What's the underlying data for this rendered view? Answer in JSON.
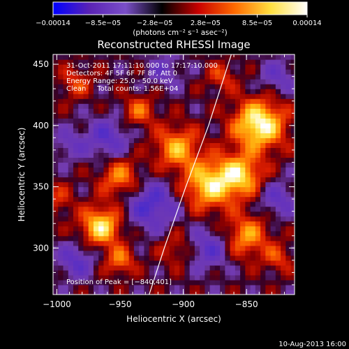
{
  "chart_data": {
    "type": "heatmap",
    "title": "Reconstructed RHESSI Image",
    "xlabel": "Heliocentric X (arcsec)",
    "ylabel": "Heliocentric Y (arcsec)",
    "xlim": [
      -1003,
      -812
    ],
    "ylim": [
      262,
      458
    ],
    "x_ticks": [
      -1000,
      -950,
      -900,
      -850
    ],
    "y_ticks": [
      300,
      350,
      400,
      450
    ],
    "x_tick_labels": [
      "−1000",
      "−950",
      "−900",
      "−850"
    ],
    "y_tick_labels": [
      "300",
      "350",
      "400",
      "450"
    ],
    "colorbar": {
      "ticks": [
        -0.00014,
        -8.5e-05,
        -2.8e-05,
        2.8e-05,
        8.5e-05,
        0.00014
      ],
      "tick_labels": [
        "−0.00014",
        "−8.5e−05",
        "−2.8e−05",
        "2.8e−05",
        "8.5e−05",
        "0.00014"
      ],
      "range": [
        -0.00014,
        0.00014
      ],
      "units": "(photons cm⁻² s⁻¹ asec⁻²)",
      "colors": [
        "#0000ff",
        "#5a23b4",
        "#7a4fc8",
        "#000000",
        "#c80000",
        "#ff6a00",
        "#ffe040",
        "#ffffff"
      ]
    },
    "annotations": [
      "31-Oct-2011 17:11:10.000 to 17:17:10.000",
      "Detectors: 4F 5F 6F 7F 8F, Att 0",
      "Energy Range: 25.0 - 50.0 keV",
      "Clean     Total counts: 1.56E+04"
    ],
    "peak": {
      "label": "Position of Peak = [−840,401]",
      "x": -840,
      "y": 401
    },
    "limb": {
      "points": [
        [
          -927,
          262
        ],
        [
          -915,
          300
        ],
        [
          -898,
          350
        ],
        [
          -880,
          400
        ],
        [
          -862,
          458
        ]
      ]
    },
    "sources": [
      {
        "x": -840,
        "y": 401,
        "amp": 1.0,
        "sigma": 14
      },
      {
        "x": -855,
        "y": 360,
        "amp": 0.75,
        "sigma": 12
      },
      {
        "x": -880,
        "y": 352,
        "amp": 0.8,
        "sigma": 14
      },
      {
        "x": -905,
        "y": 382,
        "amp": 0.65,
        "sigma": 12
      },
      {
        "x": -935,
        "y": 412,
        "amp": 0.45,
        "sigma": 9
      },
      {
        "x": -950,
        "y": 358,
        "amp": 0.55,
        "sigma": 11
      },
      {
        "x": -965,
        "y": 318,
        "amp": 0.85,
        "sigma": 11
      },
      {
        "x": -950,
        "y": 290,
        "amp": 0.5,
        "sigma": 8
      },
      {
        "x": -985,
        "y": 435,
        "amp": 0.35,
        "sigma": 9
      },
      {
        "x": -905,
        "y": 300,
        "amp": 0.3,
        "sigma": 10
      },
      {
        "x": -850,
        "y": 310,
        "amp": 0.6,
        "sigma": 12
      },
      {
        "x": -825,
        "y": 292,
        "amp": 0.35,
        "sigma": 8
      },
      {
        "x": -870,
        "y": 440,
        "amp": 0.35,
        "sigma": 8
      },
      {
        "x": -1000,
        "y": 340,
        "amp": 0.3,
        "sigma": 9
      },
      {
        "x": -985,
        "y": 290,
        "amp": -0.45,
        "sigma": 10
      },
      {
        "x": -925,
        "y": 335,
        "amp": -0.55,
        "sigma": 14
      },
      {
        "x": -960,
        "y": 390,
        "amp": -0.45,
        "sigma": 12
      },
      {
        "x": -880,
        "y": 300,
        "amp": -0.45,
        "sigma": 12
      },
      {
        "x": -825,
        "y": 340,
        "amp": -0.4,
        "sigma": 10
      },
      {
        "x": -825,
        "y": 440,
        "amp": -0.35,
        "sigma": 10
      },
      {
        "x": -990,
        "y": 385,
        "amp": -0.3,
        "sigma": 9
      },
      {
        "x": -915,
        "y": 445,
        "amp": -0.3,
        "sigma": 10
      }
    ]
  },
  "footer": {
    "timestamp": "10-Aug-2013 16:00"
  }
}
